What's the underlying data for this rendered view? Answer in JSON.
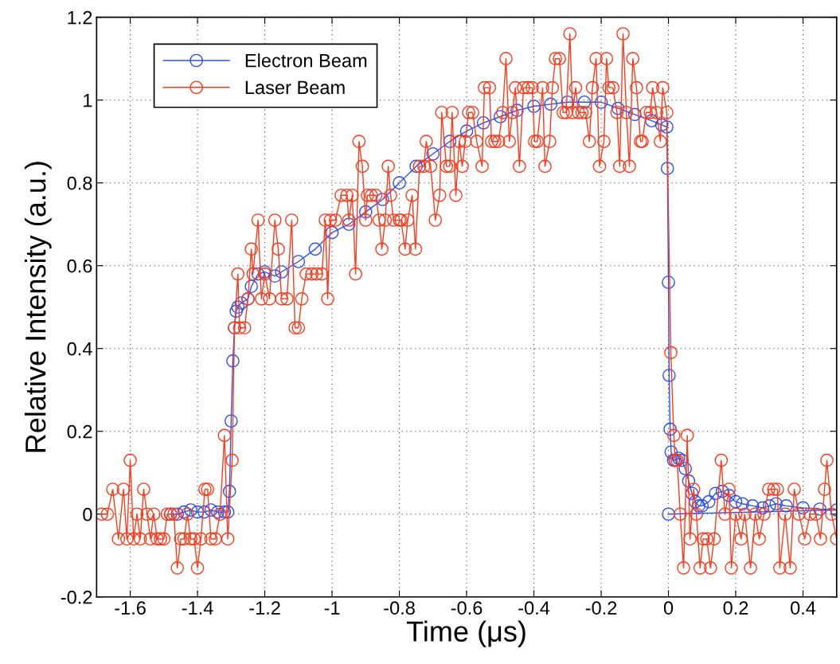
{
  "chart_data": {
    "type": "line",
    "xlabel": "Time (μs)",
    "ylabel": "Relative Intensity (a.u.)",
    "xlim": [
      -1.7,
      0.5
    ],
    "ylim": [
      -0.2,
      1.2
    ],
    "xticks": [
      -1.6,
      -1.4,
      -1.2,
      -1,
      -0.8,
      -0.6,
      -0.4,
      -0.2,
      0,
      0.2,
      0.4
    ],
    "yticks": [
      -0.2,
      0,
      0.2,
      0.4,
      0.6,
      0.8,
      1,
      1.2
    ],
    "grid": true,
    "legend": "top left",
    "marker": "circle",
    "line_style": "solid",
    "series": [
      {
        "name": "Electron Beam",
        "color": "#2b4ff0",
        "x": [
          -1.48,
          -1.46,
          -1.44,
          -1.42,
          -1.4,
          -1.38,
          -1.36,
          -1.34,
          -1.32,
          -1.31,
          -1.305,
          -1.3,
          -1.295,
          -1.29,
          -1.285,
          -1.28,
          -1.27,
          -1.25,
          -1.24,
          -1.22,
          -1.2,
          -1.17,
          -1.15,
          -1.1,
          -1.05,
          -1.0,
          -0.95,
          -0.9,
          -0.85,
          -0.8,
          -0.75,
          -0.7,
          -0.65,
          -0.6,
          -0.55,
          -0.5,
          -0.45,
          -0.4,
          -0.35,
          -0.3,
          -0.25,
          -0.2,
          -0.15,
          -0.1,
          -0.05,
          -0.02,
          -0.005,
          -0.003,
          0.0,
          0.002,
          0.005,
          0.008,
          0.015,
          0.02,
          0.03,
          0.04,
          0.05,
          0.06,
          0.07,
          0.08,
          0.09,
          0.1,
          0.12,
          0.14,
          0.16,
          0.18,
          0.2,
          0.22,
          0.25,
          0.28,
          0.3,
          0.32,
          0.35,
          0.4,
          0.45,
          0.5,
          0.0
        ],
        "values": [
          0,
          0,
          0.005,
          0.01,
          0.005,
          0.005,
          0.01,
          0.005,
          0.005,
          0.005,
          0.055,
          0.225,
          0.37,
          0.45,
          0.49,
          0.5,
          0.51,
          0.52,
          0.55,
          0.58,
          0.585,
          0.575,
          0.585,
          0.61,
          0.64,
          0.68,
          0.7,
          0.73,
          0.76,
          0.8,
          0.84,
          0.87,
          0.9,
          0.925,
          0.945,
          0.96,
          0.975,
          0.985,
          0.99,
          0.995,
          0.995,
          0.995,
          0.98,
          0.965,
          0.95,
          0.94,
          0.935,
          0.835,
          0.56,
          0.335,
          0.205,
          0.15,
          0.13,
          0.13,
          0.135,
          0.13,
          0.11,
          0.08,
          0.05,
          0.03,
          0.02,
          0.02,
          0.03,
          0.05,
          0.055,
          0.045,
          0.03,
          0.025,
          0.02,
          0.015,
          0.02,
          0.025,
          0.02,
          0.015,
          0.012,
          0.01,
          0
        ]
      },
      {
        "name": "Laser Beam",
        "color": "#ff3a1a",
        "x": [
          -1.685,
          -1.668,
          -1.652,
          -1.635,
          -1.62,
          -1.61,
          -1.6,
          -1.59,
          -1.58,
          -1.57,
          -1.56,
          -1.55,
          -1.54,
          -1.53,
          -1.52,
          -1.51,
          -1.5,
          -1.49,
          -1.48,
          -1.47,
          -1.46,
          -1.45,
          -1.44,
          -1.43,
          -1.42,
          -1.41,
          -1.4,
          -1.39,
          -1.378,
          -1.37,
          -1.36,
          -1.347,
          -1.333,
          -1.32,
          -1.31,
          -1.297,
          -1.29,
          -1.28,
          -1.275,
          -1.26,
          -1.25,
          -1.24,
          -1.235,
          -1.22,
          -1.21,
          -1.2,
          -1.186,
          -1.17,
          -1.16,
          -1.15,
          -1.134,
          -1.12,
          -1.11,
          -1.1,
          -1.09,
          -1.077,
          -1.06,
          -1.046,
          -1.03,
          -1.02,
          -1.013,
          -1.005,
          -0.99,
          -0.973,
          -0.956,
          -0.95,
          -0.94,
          -0.93,
          -0.92,
          -0.91,
          -0.9,
          -0.895,
          -0.883,
          -0.87,
          -0.86,
          -0.852,
          -0.842,
          -0.833,
          -0.826,
          -0.817,
          -0.8,
          -0.795,
          -0.783,
          -0.775,
          -0.762,
          -0.752,
          -0.74,
          -0.727,
          -0.72,
          -0.707,
          -0.693,
          -0.68,
          -0.674,
          -0.66,
          -0.65,
          -0.643,
          -0.632,
          -0.622,
          -0.613,
          -0.604,
          -0.594,
          -0.582,
          -0.57,
          -0.554,
          -0.547,
          -0.532,
          -0.526,
          -0.516,
          -0.505,
          -0.493,
          -0.483,
          -0.473,
          -0.464,
          -0.455,
          -0.443,
          -0.431,
          -0.417,
          -0.405,
          -0.398,
          -0.39,
          -0.374,
          -0.367,
          -0.353,
          -0.345,
          -0.336,
          -0.324,
          -0.313,
          -0.304,
          -0.293,
          -0.285,
          -0.276,
          -0.268,
          -0.257,
          -0.246,
          -0.235,
          -0.226,
          -0.215,
          -0.205,
          -0.192,
          -0.184,
          -0.177,
          -0.165,
          -0.153,
          -0.145,
          -0.135,
          -0.125,
          -0.116,
          -0.106,
          -0.095,
          -0.083,
          -0.078,
          -0.066,
          -0.054,
          -0.047,
          -0.035,
          -0.024,
          -0.017,
          -0.005,
          0.007,
          0.016,
          0.02,
          0.026,
          0.035,
          0.045,
          0.056,
          0.064,
          0.075,
          0.083,
          0.094,
          0.103,
          0.114,
          0.125,
          0.136,
          0.157,
          0.168,
          0.18,
          0.187,
          0.2,
          0.216,
          0.227,
          0.244,
          0.258,
          0.27,
          0.284,
          0.298,
          0.313,
          0.324,
          0.331,
          0.347,
          0.362,
          0.374,
          0.388,
          0.405,
          0.421,
          0.438,
          0.452,
          0.464,
          0.471,
          0.485,
          0.5
        ],
        "values": [
          0,
          0,
          0.06,
          -0.06,
          0.06,
          -0.06,
          0.13,
          -0.06,
          0,
          -0.06,
          0.06,
          0,
          -0.06,
          0,
          -0.06,
          -0.06,
          -0.06,
          0,
          0,
          0,
          -0.13,
          -0.06,
          -0.06,
          0,
          -0.06,
          -0.06,
          -0.13,
          -0.06,
          0.06,
          0.06,
          -0.06,
          -0.06,
          0,
          0.19,
          -0.06,
          0.13,
          0.45,
          0.58,
          0.45,
          0.45,
          0.52,
          0.64,
          0.58,
          0.71,
          0.52,
          0.58,
          0.52,
          0.71,
          0.64,
          0.52,
          0.52,
          0.71,
          0.45,
          0.45,
          0.52,
          0.58,
          0.58,
          0.58,
          0.58,
          0.71,
          0.52,
          0.71,
          0.71,
          0.77,
          0.77,
          0.71,
          0.77,
          0.58,
          0.9,
          0.84,
          0.71,
          0.77,
          0.77,
          0.77,
          0.71,
          0.64,
          0.71,
          0.84,
          0.77,
          0.71,
          0.71,
          0.71,
          0.64,
          0.71,
          0.77,
          0.64,
          0.84,
          0.84,
          0.9,
          0.84,
          0.71,
          0.77,
          0.97,
          0.84,
          0.84,
          0.97,
          0.77,
          0.9,
          0.84,
          0.9,
          0.97,
          0.97,
          0.9,
          0.84,
          1.03,
          1.03,
          0.9,
          0.9,
          0.9,
          0.97,
          1.1,
          0.9,
          0.97,
          1.03,
          0.84,
          1.03,
          1.03,
          1.03,
          0.9,
          0.9,
          1.03,
          0.84,
          0.9,
          1.03,
          1.1,
          1.1,
          0.97,
          0.97,
          1.16,
          0.97,
          1.03,
          0.97,
          0.97,
          0.97,
          0.9,
          1.03,
          1.1,
          0.84,
          0.9,
          1.1,
          1.03,
          1.03,
          0.97,
          0.84,
          1.16,
          0.97,
          0.84,
          1.1,
          1.03,
          0.9,
          0.9,
          0.97,
          0.97,
          1.03,
          0.97,
          0.9,
          1.03,
          0.97,
          0.39,
          0.19,
          0.13,
          0.13,
          0,
          -0.13,
          0.19,
          -0.06,
          0.06,
          0,
          -0.13,
          -0.06,
          -0.06,
          -0.13,
          -0.06,
          0.13,
          0,
          0.06,
          -0.13,
          0,
          -0.06,
          0,
          -0.13,
          0,
          -0.06,
          0,
          0.06,
          0.06,
          0.06,
          -0.13,
          0,
          -0.13,
          0.06,
          0,
          -0.06,
          0,
          0,
          -0.06,
          0.06,
          0.13,
          0,
          -0.06
        ]
      }
    ]
  }
}
